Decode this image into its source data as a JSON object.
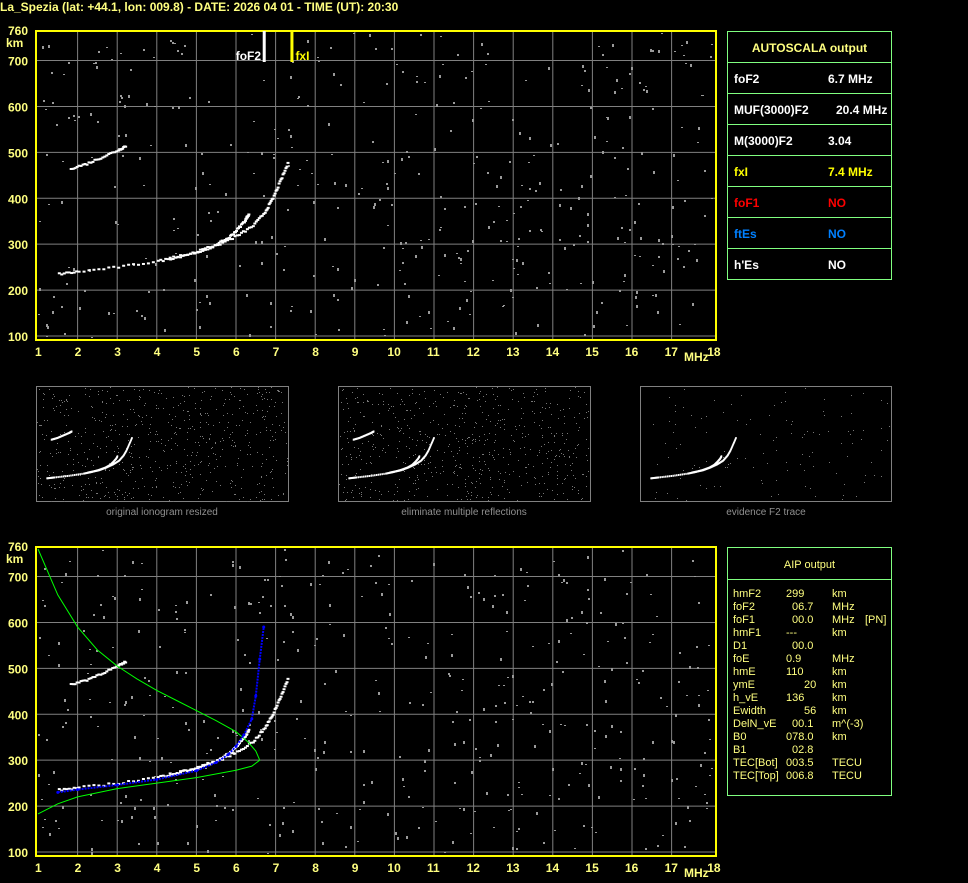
{
  "title": "La_Spezia (lat: +44.1, lon: 009.8) - DATE: 2026 04 01 - TIME (UT): 20:30",
  "colors": {
    "axis": "#ffff00",
    "grid": "#808080",
    "table_border": "#80ff80",
    "text_yellow": "#ffff80",
    "red": "#ff0000",
    "blue": "#0080ff",
    "profile": "#00ff00",
    "trace_fit": "#0000ff"
  },
  "chart_data": [
    {
      "type": "scatter",
      "name": "ionogram",
      "xlabel": "MHz",
      "ylabel": "km",
      "xlim": [
        1,
        18
      ],
      "ylim": [
        100,
        760
      ],
      "x_ticks": [
        "1",
        "2",
        "3",
        "4",
        "5",
        "6",
        "7",
        "8",
        "9",
        "10",
        "11",
        "12",
        "13",
        "14",
        "15",
        "16",
        "17",
        "18"
      ],
      "y_ticks": [
        "100",
        "200",
        "300",
        "400",
        "500",
        "600",
        "700",
        "760"
      ],
      "grid": true,
      "markers": [
        {
          "label": "foF2",
          "freq": 6.7
        },
        {
          "label": "fxI",
          "freq": 7.4
        }
      ],
      "traces": {
        "o_trace": [
          [
            1.5,
            235
          ],
          [
            2,
            240
          ],
          [
            3,
            250
          ],
          [
            4,
            263
          ],
          [
            4.5,
            272
          ],
          [
            5,
            284
          ],
          [
            5.5,
            300
          ],
          [
            5.8,
            315
          ],
          [
            6,
            332
          ],
          [
            6.2,
            352
          ],
          [
            6.3,
            368
          ]
        ],
        "x_trace": [
          [
            4.3,
            270
          ],
          [
            5,
            282
          ],
          [
            5.5,
            298
          ],
          [
            6,
            318
          ],
          [
            6.4,
            340
          ],
          [
            6.7,
            370
          ],
          [
            6.9,
            400
          ],
          [
            7.1,
            440
          ],
          [
            7.3,
            480
          ]
        ],
        "second_hop": [
          [
            1.8,
            465
          ],
          [
            2.2,
            475
          ],
          [
            2.6,
            490
          ],
          [
            3,
            505
          ],
          [
            3.2,
            515
          ]
        ]
      }
    },
    {
      "type": "line",
      "name": "aip",
      "xlabel": "MHz",
      "ylabel": "km",
      "xlim": [
        1,
        18
      ],
      "ylim": [
        100,
        760
      ],
      "x_ticks": [
        "1",
        "2",
        "3",
        "4",
        "5",
        "6",
        "7",
        "8",
        "9",
        "10",
        "11",
        "12",
        "13",
        "14",
        "15",
        "16",
        "17",
        "18"
      ],
      "y_ticks": [
        "100",
        "200",
        "300",
        "400",
        "500",
        "600",
        "700",
        "760"
      ],
      "grid": true,
      "profile": [
        [
          1,
          760
        ],
        [
          1.5,
          660
        ],
        [
          2,
          590
        ],
        [
          2.5,
          540
        ],
        [
          3,
          505
        ],
        [
          3.5,
          477
        ],
        [
          4,
          452
        ],
        [
          4.5,
          430
        ],
        [
          5,
          408
        ],
        [
          5.5,
          386
        ],
        [
          6,
          362
        ],
        [
          6.3,
          340
        ],
        [
          6.5,
          320
        ],
        [
          6.6,
          300
        ],
        [
          6.4,
          287
        ],
        [
          6,
          278
        ],
        [
          5,
          262
        ],
        [
          4,
          250
        ],
        [
          3,
          238
        ],
        [
          2,
          220
        ],
        [
          1.5,
          205
        ],
        [
          1,
          183
        ]
      ],
      "fit_trace": [
        [
          1.5,
          230
        ],
        [
          2,
          236
        ],
        [
          3,
          246
        ],
        [
          4,
          258
        ],
        [
          5,
          277
        ],
        [
          5.5,
          295
        ],
        [
          5.8,
          312
        ],
        [
          6,
          330
        ],
        [
          6.2,
          355
        ],
        [
          6.4,
          390
        ],
        [
          6.5,
          440
        ],
        [
          6.6,
          520
        ],
        [
          6.7,
          590
        ]
      ]
    }
  ],
  "autoscala": {
    "header": "AUTOSCALA output",
    "rows": [
      {
        "label": "foF2",
        "value": "6.7 MHz",
        "color": "#ffffff"
      },
      {
        "label": "MUF(3000)F2",
        "value": "20.4 MHz",
        "color": "#ffffff"
      },
      {
        "label": "M(3000)F2",
        "value": "3.04",
        "color": "#ffffff"
      },
      {
        "label": "fxI",
        "value": "7.4 MHz",
        "color": "#ffff00"
      },
      {
        "label": "foF1",
        "value": "NO",
        "color": "#ff0000"
      },
      {
        "label": "ftEs",
        "value": "NO",
        "color": "#0080ff"
      },
      {
        "label": "h'Es",
        "value": "NO",
        "color": "#ffffff"
      }
    ]
  },
  "aip": {
    "header": "AIP output",
    "rows": [
      [
        "hmF2",
        "299",
        "km",
        ""
      ],
      [
        "foF2",
        "06.7",
        "MHz",
        ""
      ],
      [
        "foF1",
        "00.0",
        "MHz",
        "[PN]"
      ],
      [
        "hmF1",
        "---",
        "km",
        ""
      ],
      [
        "D1",
        "00.0",
        "",
        ""
      ],
      [
        "foE",
        "0.9",
        "MHz",
        ""
      ],
      [
        "hmE",
        "110",
        "km",
        ""
      ],
      [
        "ymE",
        "20",
        "km",
        ""
      ],
      [
        "h_vE",
        "136",
        "km",
        ""
      ],
      [
        "Ewidth",
        "56",
        "km",
        ""
      ],
      [
        "DelN_vE",
        "00.1",
        "m^(-3)",
        ""
      ],
      [
        "B0",
        "078.0",
        "km",
        ""
      ],
      [
        "B1",
        "02.8",
        "",
        ""
      ],
      [
        "TEC[Bot]",
        "003.5",
        "TECU",
        ""
      ],
      [
        "TEC[Top]",
        "006.8",
        "TECU",
        ""
      ]
    ]
  },
  "thumbnails": [
    {
      "caption": "original ionogram resized"
    },
    {
      "caption": "eliminate multiple reflections"
    },
    {
      "caption": "evidence F2 trace"
    }
  ]
}
